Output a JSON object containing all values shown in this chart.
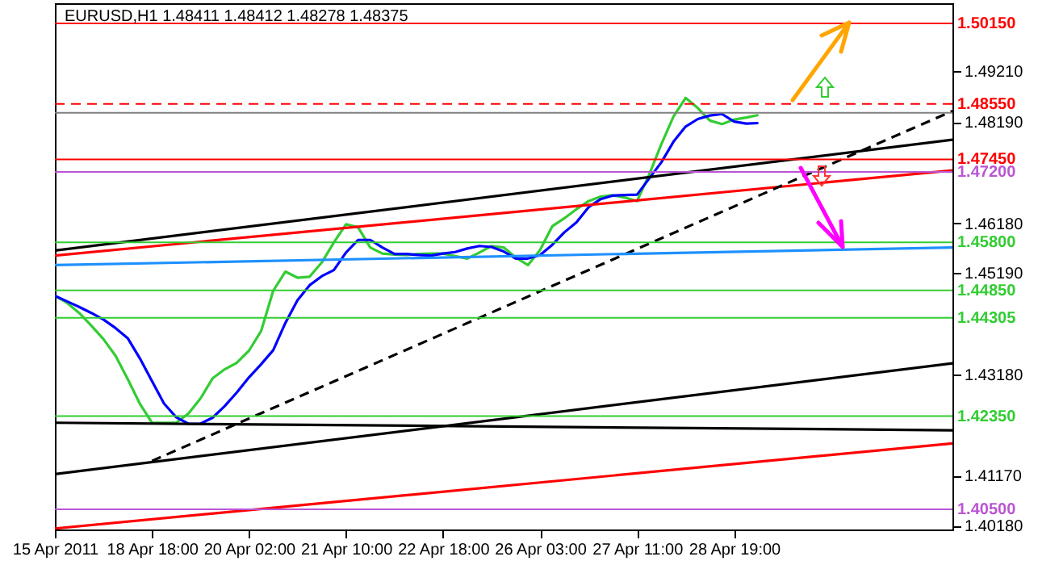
{
  "chart_data": {
    "type": "line",
    "title": "EURUSD,H1  1.48411 1.48412 1.48278 1.48375",
    "categories": [
      "15 Apr 2011",
      null,
      null,
      null,
      null,
      null,
      null,
      null,
      "18 Apr 18:00",
      null,
      null,
      null,
      null,
      null,
      null,
      null,
      "20 Apr 02:00",
      null,
      null,
      null,
      null,
      null,
      null,
      null,
      "21 Apr 10:00",
      null,
      null,
      null,
      null,
      null,
      null,
      null,
      "22 Apr 18:00",
      null,
      null,
      null,
      null,
      null,
      null,
      null,
      "26 Apr 03:00",
      null,
      null,
      null,
      null,
      null,
      null,
      null,
      "27 Apr 11:00",
      null,
      null,
      null,
      null,
      null,
      null,
      null,
      "28 Apr 19:00",
      null,
      null,
      null,
      null,
      null,
      null,
      null,
      null,
      null,
      null,
      null,
      null,
      null,
      null,
      null,
      null,
      null,
      null
    ],
    "ylim": [
      1.401,
      1.5055
    ],
    "yticks": [
      {
        "value": 1.4018,
        "label": "1.40180"
      },
      {
        "value": 1.4117,
        "label": "1.41170"
      },
      {
        "value": 1.4318,
        "label": "1.43180"
      },
      {
        "value": 1.4519,
        "label": "1.45190"
      },
      {
        "value": 1.4618,
        "label": "1.46180"
      },
      {
        "value": 1.4819,
        "label": "1.48190"
      },
      {
        "value": 1.4921,
        "label": "1.49210"
      }
    ],
    "grid": false,
    "series": [
      {
        "color": "#33cc33",
        "values": [
          1.4474,
          1.446,
          1.444,
          1.4415,
          1.4388,
          1.4355,
          1.4309,
          1.426,
          1.4222,
          1.4222,
          1.4222,
          1.424,
          1.427,
          1.431,
          1.4328,
          1.4341,
          1.4365,
          1.4404,
          1.4484,
          1.4522,
          1.451,
          1.4512,
          1.454,
          1.458,
          1.4616,
          1.461,
          1.457,
          1.4558,
          1.4556,
          1.4555,
          1.4557,
          1.4558,
          1.4558,
          1.4553,
          1.4548,
          1.456,
          1.4573,
          1.457,
          1.455,
          1.4535,
          1.4565,
          1.4612,
          1.4628,
          1.4646,
          1.4662,
          1.4671,
          1.4674,
          1.4669,
          1.4662,
          1.4715,
          1.4775,
          1.483,
          1.4867,
          1.4847,
          1.4822,
          1.4815,
          1.4824,
          1.4828,
          1.4833,
          null,
          null,
          null,
          null,
          null,
          null,
          null,
          null,
          null,
          null,
          null,
          null,
          null,
          null,
          null,
          null
        ]
      },
      {
        "color": "#0000ff",
        "values": [
          1.4474,
          1.4463,
          1.4452,
          1.444,
          1.4427,
          1.441,
          1.439,
          1.435,
          1.4305,
          1.426,
          1.4233,
          1.422,
          1.422,
          1.4232,
          1.4255,
          1.4282,
          1.4312,
          1.4338,
          1.4366,
          1.442,
          1.4465,
          1.4495,
          1.4513,
          1.4525,
          1.456,
          1.4585,
          1.4585,
          1.457,
          1.4557,
          1.4557,
          1.4555,
          1.4554,
          1.4558,
          1.4561,
          1.4568,
          1.4573,
          1.4571,
          1.4562,
          1.4548,
          1.4548,
          1.4555,
          1.4575,
          1.46,
          1.462,
          1.465,
          1.4666,
          1.4673,
          1.4674,
          1.4675,
          1.4707,
          1.4739,
          1.478,
          1.481,
          1.4825,
          1.4832,
          1.4835,
          1.482,
          1.4816,
          1.4817,
          null,
          null,
          null,
          null,
          null,
          null,
          null,
          null,
          null,
          null,
          null,
          null,
          null,
          null,
          null,
          null
        ]
      },
      {
        "color": "#ff0000",
        "values": [
          1.4554,
          null,
          null,
          null,
          null,
          null,
          null,
          null,
          null,
          null,
          null,
          null,
          null,
          null,
          null,
          null,
          null,
          null,
          null,
          null,
          null,
          null,
          null,
          null,
          null,
          null,
          null,
          null,
          null,
          null,
          null,
          null,
          null,
          null,
          null,
          null,
          null,
          null,
          null,
          null,
          null,
          null,
          null,
          null,
          null,
          null,
          null,
          null,
          null,
          null,
          null,
          null,
          null,
          null,
          null,
          null,
          null,
          null,
          null,
          null,
          null,
          null,
          null,
          null,
          null,
          null,
          null,
          null,
          null,
          null,
          null,
          null,
          null,
          null,
          1.4723
        ]
      },
      {
        "color": "#000000",
        "values": [
          1.4564,
          null,
          null,
          null,
          null,
          null,
          null,
          null,
          null,
          null,
          null,
          null,
          null,
          null,
          null,
          null,
          null,
          null,
          null,
          null,
          null,
          null,
          null,
          null,
          null,
          null,
          null,
          null,
          null,
          null,
          null,
          null,
          null,
          null,
          null,
          null,
          null,
          null,
          null,
          null,
          null,
          null,
          null,
          null,
          null,
          null,
          null,
          null,
          null,
          null,
          null,
          null,
          null,
          null,
          null,
          null,
          null,
          null,
          null,
          null,
          null,
          null,
          null,
          null,
          null,
          null,
          null,
          null,
          null,
          null,
          null,
          null,
          null,
          null,
          1.4784
        ]
      },
      {
        "color": "#ff0000",
        "values": [
          1.4012,
          null,
          null,
          null,
          null,
          null,
          null,
          null,
          null,
          null,
          null,
          null,
          null,
          null,
          null,
          null,
          null,
          null,
          null,
          null,
          null,
          null,
          null,
          null,
          null,
          null,
          null,
          null,
          null,
          null,
          null,
          null,
          null,
          null,
          null,
          null,
          null,
          null,
          null,
          null,
          null,
          null,
          null,
          null,
          null,
          null,
          null,
          null,
          null,
          null,
          null,
          null,
          null,
          null,
          null,
          null,
          null,
          null,
          null,
          null,
          null,
          null,
          null,
          null,
          null,
          null,
          null,
          null,
          null,
          null,
          null,
          null,
          null,
          null,
          1.4181
        ]
      },
      {
        "color": "#000000",
        "values": [
          1.412,
          null,
          null,
          null,
          null,
          null,
          null,
          null,
          null,
          null,
          null,
          null,
          null,
          null,
          null,
          null,
          null,
          null,
          null,
          null,
          null,
          null,
          null,
          null,
          null,
          null,
          null,
          null,
          null,
          null,
          null,
          null,
          null,
          null,
          null,
          null,
          null,
          null,
          null,
          null,
          null,
          null,
          null,
          null,
          null,
          null,
          null,
          null,
          null,
          null,
          null,
          null,
          null,
          null,
          null,
          null,
          null,
          null,
          null,
          null,
          null,
          null,
          null,
          null,
          null,
          null,
          null,
          null,
          null,
          null,
          null,
          null,
          null,
          null,
          1.434
        ]
      },
      {
        "color": "#000000",
        "line_style": "dashed",
        "values": [
          null,
          null,
          null,
          null,
          null,
          null,
          null,
          null,
          1.4146,
          null,
          null,
          null,
          null,
          null,
          null,
          null,
          null,
          null,
          null,
          null,
          null,
          null,
          null,
          null,
          null,
          null,
          null,
          null,
          null,
          null,
          null,
          null,
          null,
          null,
          null,
          null,
          null,
          null,
          null,
          null,
          null,
          null,
          null,
          null,
          null,
          null,
          null,
          null,
          null,
          null,
          null,
          null,
          null,
          null,
          null,
          null,
          null,
          null,
          null,
          null,
          null,
          null,
          null,
          null,
          null,
          null,
          null,
          null,
          null,
          null,
          null,
          null,
          null,
          null,
          1.4841
        ]
      },
      {
        "color": "#000000",
        "values": [
          1.4222,
          null,
          null,
          null,
          null,
          null,
          null,
          null,
          null,
          null,
          null,
          null,
          null,
          null,
          null,
          null,
          null,
          null,
          null,
          null,
          null,
          null,
          null,
          null,
          null,
          null,
          null,
          null,
          null,
          null,
          null,
          null,
          null,
          null,
          null,
          null,
          null,
          null,
          null,
          null,
          null,
          null,
          null,
          null,
          null,
          null,
          null,
          null,
          null,
          null,
          null,
          null,
          null,
          null,
          null,
          null,
          null,
          null,
          null,
          null,
          null,
          null,
          null,
          null,
          null,
          null,
          null,
          null,
          null,
          null,
          null,
          null,
          null,
          null,
          1.4207
        ]
      },
      {
        "color": "#1e90ff",
        "values": [
          1.4535,
          null,
          null,
          null,
          null,
          null,
          null,
          null,
          null,
          null,
          null,
          null,
          null,
          null,
          null,
          null,
          null,
          null,
          null,
          null,
          null,
          null,
          null,
          null,
          null,
          null,
          null,
          null,
          null,
          null,
          null,
          null,
          null,
          null,
          null,
          null,
          null,
          null,
          null,
          null,
          null,
          null,
          null,
          null,
          null,
          null,
          null,
          null,
          null,
          null,
          null,
          null,
          null,
          null,
          null,
          null,
          null,
          null,
          null,
          null,
          null,
          null,
          null,
          null,
          null,
          null,
          null,
          null,
          null,
          null,
          null,
          null,
          null,
          null,
          1.457
        ]
      }
    ],
    "ref_lines": [
      {
        "axis": "y",
        "value": 1.5015,
        "label": "1.50150",
        "color": "#ff0000"
      },
      {
        "axis": "y",
        "value": 1.4855,
        "label": "1.48550",
        "color": "#ff0000",
        "line_style": "dashed"
      },
      {
        "axis": "y",
        "value": 1.48375,
        "color": "#808080"
      },
      {
        "axis": "y",
        "value": 1.4745,
        "label": "1.47450",
        "color": "#ff0000"
      },
      {
        "axis": "y",
        "value": 1.472,
        "label": "1.47200",
        "color": "#ba55d3"
      },
      {
        "axis": "y",
        "value": 1.458,
        "label": "1.45800",
        "color": "#32cd32"
      },
      {
        "axis": "y",
        "value": 1.4485,
        "label": "1.44850",
        "color": "#32cd32"
      },
      {
        "axis": "y",
        "value": 1.44305,
        "label": "1.44305",
        "color": "#32cd32"
      },
      {
        "axis": "y",
        "value": 1.4235,
        "label": "1.42350",
        "color": "#32cd32"
      },
      {
        "axis": "y",
        "value": 1.405,
        "label": "1.40500",
        "color": "#ba55d3"
      }
    ]
  }
}
